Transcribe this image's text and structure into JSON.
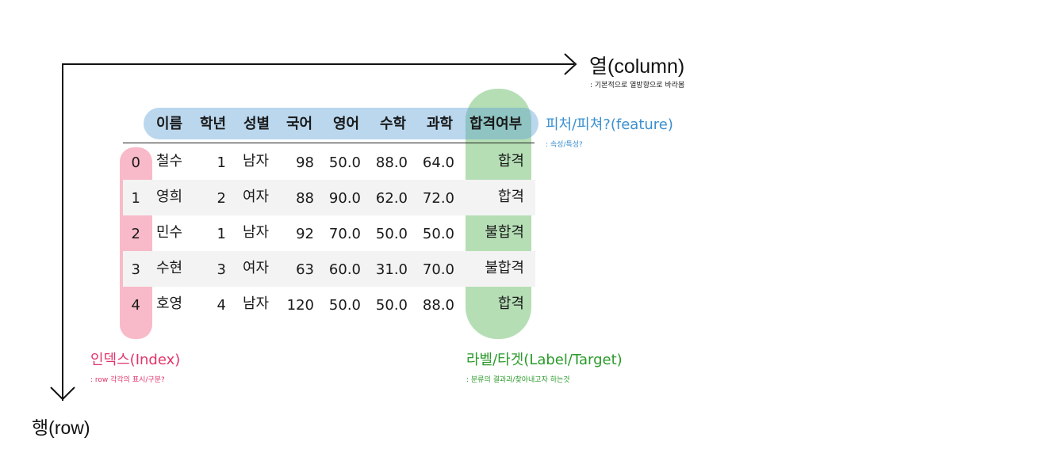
{
  "axes": {
    "column_label": "열(column)",
    "column_note": ": 기본적으로 열방향으로 바라봄",
    "row_label": "행(row)"
  },
  "annotations": {
    "feature_label": "피처/피쳐?(feature)",
    "feature_note": ": 속성/특성?",
    "index_label": "인덱스(Index)",
    "index_note": ": row 각각의 표시/구분?",
    "target_label": "라벨/타겟(Label/Target)",
    "target_note": ": 분류의 결과과/찾아내고자 하는것"
  },
  "colors": {
    "feature": "#3a8fd0",
    "index": "#e0356a",
    "target": "#2a9a2a"
  },
  "table": {
    "headers": [
      "이름",
      "학년",
      "성별",
      "국어",
      "영어",
      "수학",
      "과학",
      "합격여부"
    ],
    "rows": [
      {
        "index": "0",
        "cells": [
          "철수",
          "1",
          "남자",
          "98",
          "50.0",
          "88.0",
          "64.0",
          "합격"
        ]
      },
      {
        "index": "1",
        "cells": [
          "영희",
          "2",
          "여자",
          "88",
          "90.0",
          "62.0",
          "72.0",
          "합격"
        ]
      },
      {
        "index": "2",
        "cells": [
          "민수",
          "1",
          "남자",
          "92",
          "70.0",
          "50.0",
          "50.0",
          "불합격"
        ]
      },
      {
        "index": "3",
        "cells": [
          "수현",
          "3",
          "여자",
          "63",
          "60.0",
          "31.0",
          "70.0",
          "불합격"
        ]
      },
      {
        "index": "4",
        "cells": [
          "호영",
          "4",
          "남자",
          "120",
          "50.0",
          "50.0",
          "88.0",
          "합격"
        ]
      }
    ]
  }
}
